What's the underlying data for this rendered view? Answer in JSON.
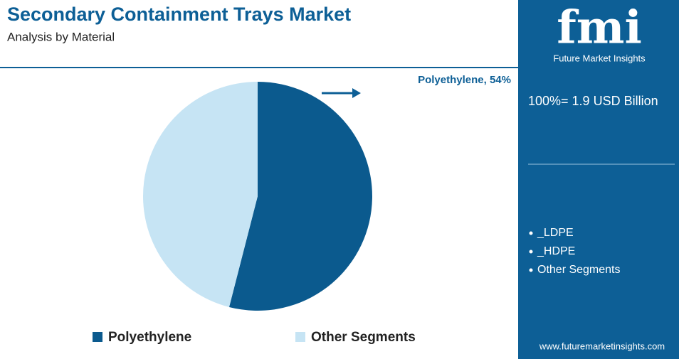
{
  "chart_data": {
    "type": "pie",
    "title": "Secondary Containment Trays Market",
    "subtitle": "Analysis by Material",
    "categories": [
      "Polyethylene",
      "Other Segments"
    ],
    "values": [
      54,
      46
    ],
    "value_labels": [
      "Polyethylene, 54%",
      null
    ],
    "colors": [
      "#0b5a8e",
      "#c6e4f4"
    ]
  },
  "sidebar": {
    "logo": "fmi",
    "brand": "Future Market Insights",
    "total": "100%= 1.9 USD Billion",
    "items": [
      "_LDPE",
      "_HDPE",
      "Other Segments"
    ],
    "website": "www.futuremarketinsights.com"
  }
}
